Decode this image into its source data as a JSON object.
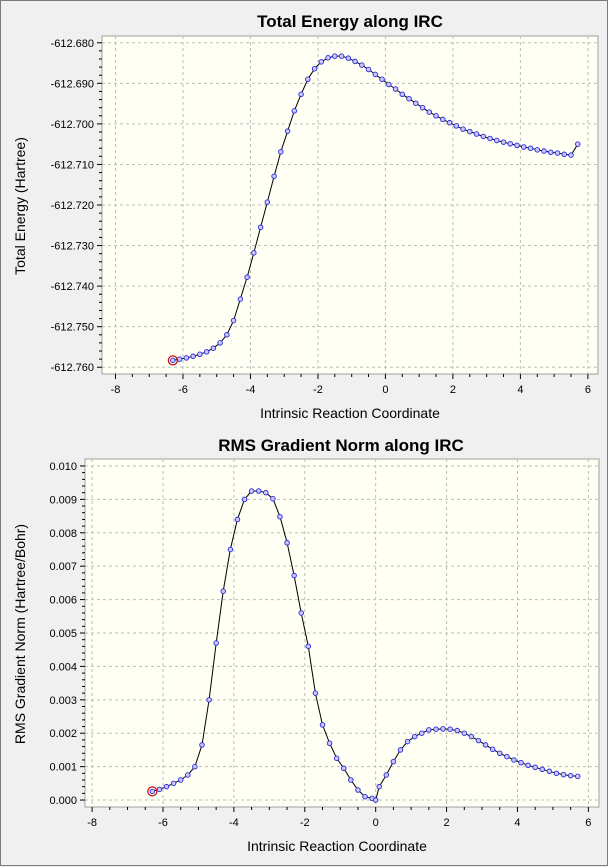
{
  "chart_data": [
    {
      "type": "line",
      "title": "Total Energy along IRC",
      "xlabel": "Intrinsic Reaction Coordinate",
      "ylabel": "Total Energy (Hartree)",
      "xlim": [
        -8.4,
        6.3
      ],
      "ylim": [
        -612.76,
        -612.68
      ],
      "xticks": [
        "-8",
        "-6",
        "-4",
        "-2",
        "0",
        "2",
        "4",
        "6"
      ],
      "yticks": [
        "-612.680",
        "-612.690",
        "-612.700",
        "-612.710",
        "-612.720",
        "-612.730",
        "-612.740",
        "-612.750",
        "-612.760"
      ],
      "grid": true,
      "series": [
        {
          "x": [
            -6.3,
            -6.1,
            -5.9,
            -5.7,
            -5.5,
            -5.3,
            -5.1,
            -4.9,
            -4.7,
            -4.5,
            -4.3,
            -4.1,
            -3.9,
            -3.7,
            -3.5,
            -3.3,
            -3.1,
            -2.9,
            -2.7,
            -2.5,
            -2.3,
            -2.1,
            -1.9,
            -1.7,
            -1.5,
            -1.3,
            -1.1,
            -0.9,
            -0.7,
            -0.5,
            -0.3,
            -0.1,
            0.1,
            0.3,
            0.5,
            0.7,
            0.9,
            1.1,
            1.3,
            1.5,
            1.7,
            1.9,
            2.1,
            2.3,
            2.5,
            2.7,
            2.9,
            3.1,
            3.3,
            3.5,
            3.7,
            3.9,
            4.1,
            4.3,
            4.5,
            4.7,
            4.9,
            5.1,
            5.3,
            5.5,
            5.7
          ],
          "y": [
            -612.7583,
            -612.758,
            -612.7577,
            -612.7573,
            -612.7568,
            -612.7562,
            -612.7553,
            -612.754,
            -612.752,
            -612.7485,
            -612.7432,
            -612.7378,
            -612.7318,
            -612.7255,
            -612.7193,
            -612.7129,
            -612.7069,
            -612.7018,
            -612.6968,
            -612.6927,
            -612.689,
            -612.6864,
            -612.6847,
            -612.6837,
            -612.6833,
            -612.6833,
            -612.6838,
            -612.6846,
            -612.6855,
            -612.6866,
            -612.6878,
            -612.689,
            -612.6903,
            -612.6914,
            -612.6927,
            -612.6938,
            -612.6949,
            -612.696,
            -612.6971,
            -612.698,
            -612.6989,
            -612.6997,
            -612.7005,
            -612.7013,
            -612.7019,
            -612.7025,
            -612.7031,
            -612.7036,
            -612.7041,
            -612.7045,
            -612.7049,
            -612.7053,
            -612.7057,
            -612.706,
            -612.7064,
            -612.7067,
            -612.707,
            -612.7072,
            -612.7075,
            -612.7077,
            -612.705
          ]
        }
      ],
      "highlight_point": {
        "x": -6.3,
        "y": -612.7583
      }
    },
    {
      "type": "line",
      "title": "RMS Gradient Norm along IRC",
      "xlabel": "Intrinsic Reaction Coordinate",
      "ylabel": "RMS Gradient Norm (Hartree/Bohr)",
      "xlim": [
        -8.2,
        6.3
      ],
      "ylim": [
        0.0,
        0.01
      ],
      "xticks": [
        "-8",
        "-6",
        "-4",
        "-2",
        "0",
        "2",
        "4",
        "6"
      ],
      "yticks": [
        "0.010",
        "0.009",
        "0.008",
        "0.007",
        "0.006",
        "0.005",
        "0.004",
        "0.003",
        "0.002",
        "0.001",
        "0.000"
      ],
      "grid": true,
      "series": [
        {
          "x": [
            -6.3,
            -6.1,
            -5.9,
            -5.7,
            -5.5,
            -5.3,
            -5.1,
            -4.9,
            -4.7,
            -4.5,
            -4.3,
            -4.1,
            -3.9,
            -3.7,
            -3.5,
            -3.3,
            -3.1,
            -2.9,
            -2.7,
            -2.5,
            -2.3,
            -2.1,
            -1.9,
            -1.7,
            -1.5,
            -1.3,
            -1.1,
            -0.9,
            -0.7,
            -0.5,
            -0.3,
            -0.1,
            0.0,
            0.1,
            0.3,
            0.5,
            0.7,
            0.9,
            1.1,
            1.3,
            1.5,
            1.7,
            1.9,
            2.1,
            2.3,
            2.5,
            2.7,
            2.9,
            3.1,
            3.3,
            3.5,
            3.7,
            3.9,
            4.1,
            4.3,
            4.5,
            4.7,
            4.9,
            5.1,
            5.3,
            5.5,
            5.7
          ],
          "y": [
            0.00026,
            0.00032,
            0.0004,
            0.0005,
            0.0006,
            0.00075,
            0.001,
            0.00165,
            0.003,
            0.0047,
            0.00625,
            0.0075,
            0.0084,
            0.009,
            0.00925,
            0.00925,
            0.0092,
            0.00902,
            0.00848,
            0.0077,
            0.00672,
            0.0056,
            0.0046,
            0.0032,
            0.00225,
            0.0017,
            0.00125,
            0.00095,
            0.0006,
            0.0003,
            0.0001,
            5e-05,
            0.0,
            0.0004,
            0.00075,
            0.00115,
            0.0015,
            0.00175,
            0.0019,
            0.002,
            0.0021,
            0.00212,
            0.00213,
            0.00212,
            0.00208,
            0.002,
            0.0019,
            0.00178,
            0.00165,
            0.00152,
            0.0014,
            0.0013,
            0.0012,
            0.00112,
            0.00104,
            0.00098,
            0.00092,
            0.00086,
            0.0008,
            0.00076,
            0.00073,
            0.00071
          ]
        }
      ],
      "highlight_point": {
        "x": -6.3,
        "y": 0.00026
      }
    }
  ]
}
